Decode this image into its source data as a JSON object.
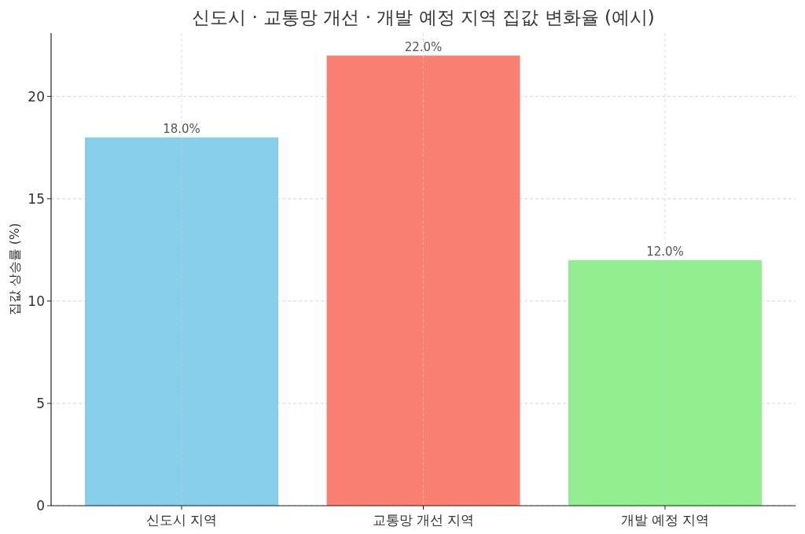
{
  "chart_data": {
    "type": "bar",
    "title": "신도시 · 교통망 개선 · 개발 예정 지역 집값 변화율 (예시)",
    "ylabel": "집값 상승률 (%)",
    "categories": [
      "신도시 지역",
      "교통망 개선 지역",
      "개발 예정 지역"
    ],
    "values": [
      18,
      22,
      12
    ],
    "colors": [
      "#87ceeb",
      "#fa8072",
      "#90ee90"
    ],
    "value_labels": [
      "18.0%",
      "22.0%",
      "12.0%"
    ],
    "ylim": [
      0,
      23.1
    ],
    "yticks": [
      0,
      5,
      10,
      15,
      20
    ],
    "grid": true
  }
}
